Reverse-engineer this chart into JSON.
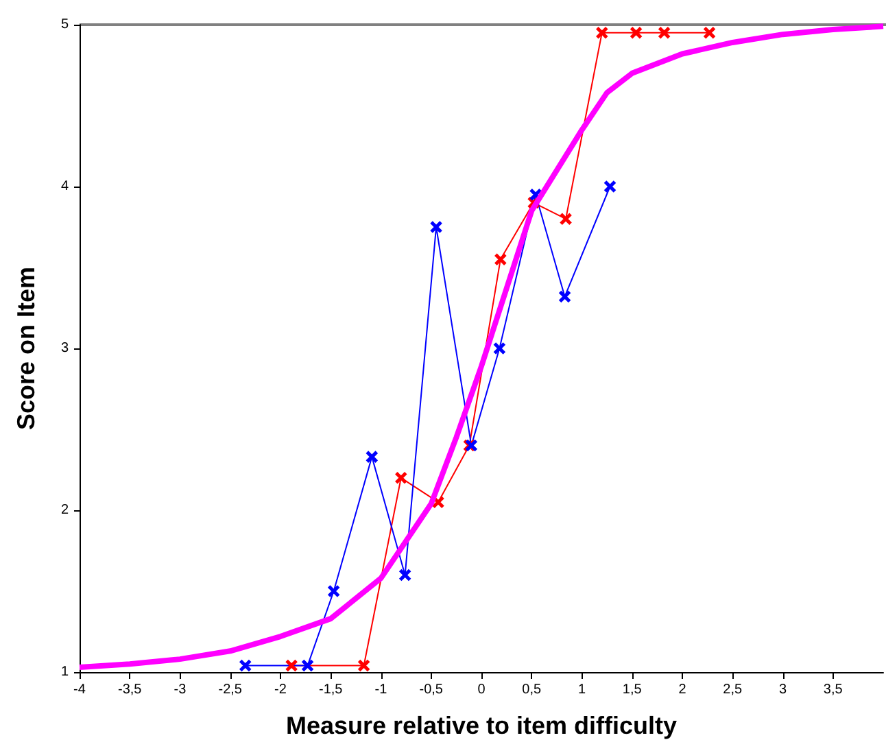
{
  "chart_data": {
    "type": "line",
    "xlabel": "Measure relative to item difficulty",
    "ylabel": "Score on Item",
    "xlim": [
      -4,
      4
    ],
    "ylim": [
      1,
      5
    ],
    "xticks": [
      -4,
      {
        "value": -3.5,
        "label": "-3,5"
      },
      -3,
      {
        "value": -2.5,
        "label": "-2,5"
      },
      -2,
      {
        "value": -1.5,
        "label": "-1,5"
      },
      -1,
      {
        "value": -0.5,
        "label": "-0,5"
      },
      0,
      {
        "value": 0.5,
        "label": "0,5"
      },
      1,
      {
        "value": 1.5,
        "label": "1,5"
      },
      2,
      {
        "value": 2.5,
        "label": "2,5"
      },
      3,
      {
        "value": 3.5,
        "label": "3,5"
      }
    ],
    "yticks": [
      1,
      2,
      3,
      4,
      5
    ],
    "grid": false,
    "series": [
      {
        "color": "#ff00ff",
        "marker": "none",
        "x": [
          -4,
          -3.5,
          -3,
          -2.5,
          -2,
          -1.5,
          -1,
          -0.5,
          -0.25,
          0,
          0.25,
          0.5,
          0.75,
          1,
          1.25,
          1.5,
          2,
          2.5,
          3,
          3.5,
          4
        ],
        "values": [
          1.03,
          1.05,
          1.08,
          1.13,
          1.22,
          1.33,
          1.58,
          2.04,
          2.45,
          2.89,
          3.37,
          3.85,
          4.1,
          4.35,
          4.58,
          4.7,
          4.82,
          4.89,
          4.94,
          4.97,
          4.99
        ]
      },
      {
        "color": "#0000ff",
        "marker": "cross",
        "x": [
          -2.35,
          -1.73,
          -1.47,
          -1.09,
          -0.76,
          -0.45,
          -0.1,
          0.18,
          0.54,
          0.83,
          1.28
        ],
        "values": [
          1.04,
          1.04,
          1.5,
          2.33,
          1.6,
          3.75,
          2.4,
          3.0,
          3.95,
          3.32,
          4.0
        ]
      },
      {
        "color": "#ff0000",
        "marker": "cross",
        "x": [
          -1.89,
          -1.17,
          -0.8,
          -0.43,
          -0.12,
          0.19,
          0.52,
          0.84,
          1.2,
          1.54,
          1.82,
          2.27
        ],
        "values": [
          1.04,
          1.04,
          2.2,
          2.05,
          2.4,
          3.55,
          3.9,
          3.8,
          4.95,
          4.95,
          4.95,
          4.95
        ]
      }
    ]
  }
}
